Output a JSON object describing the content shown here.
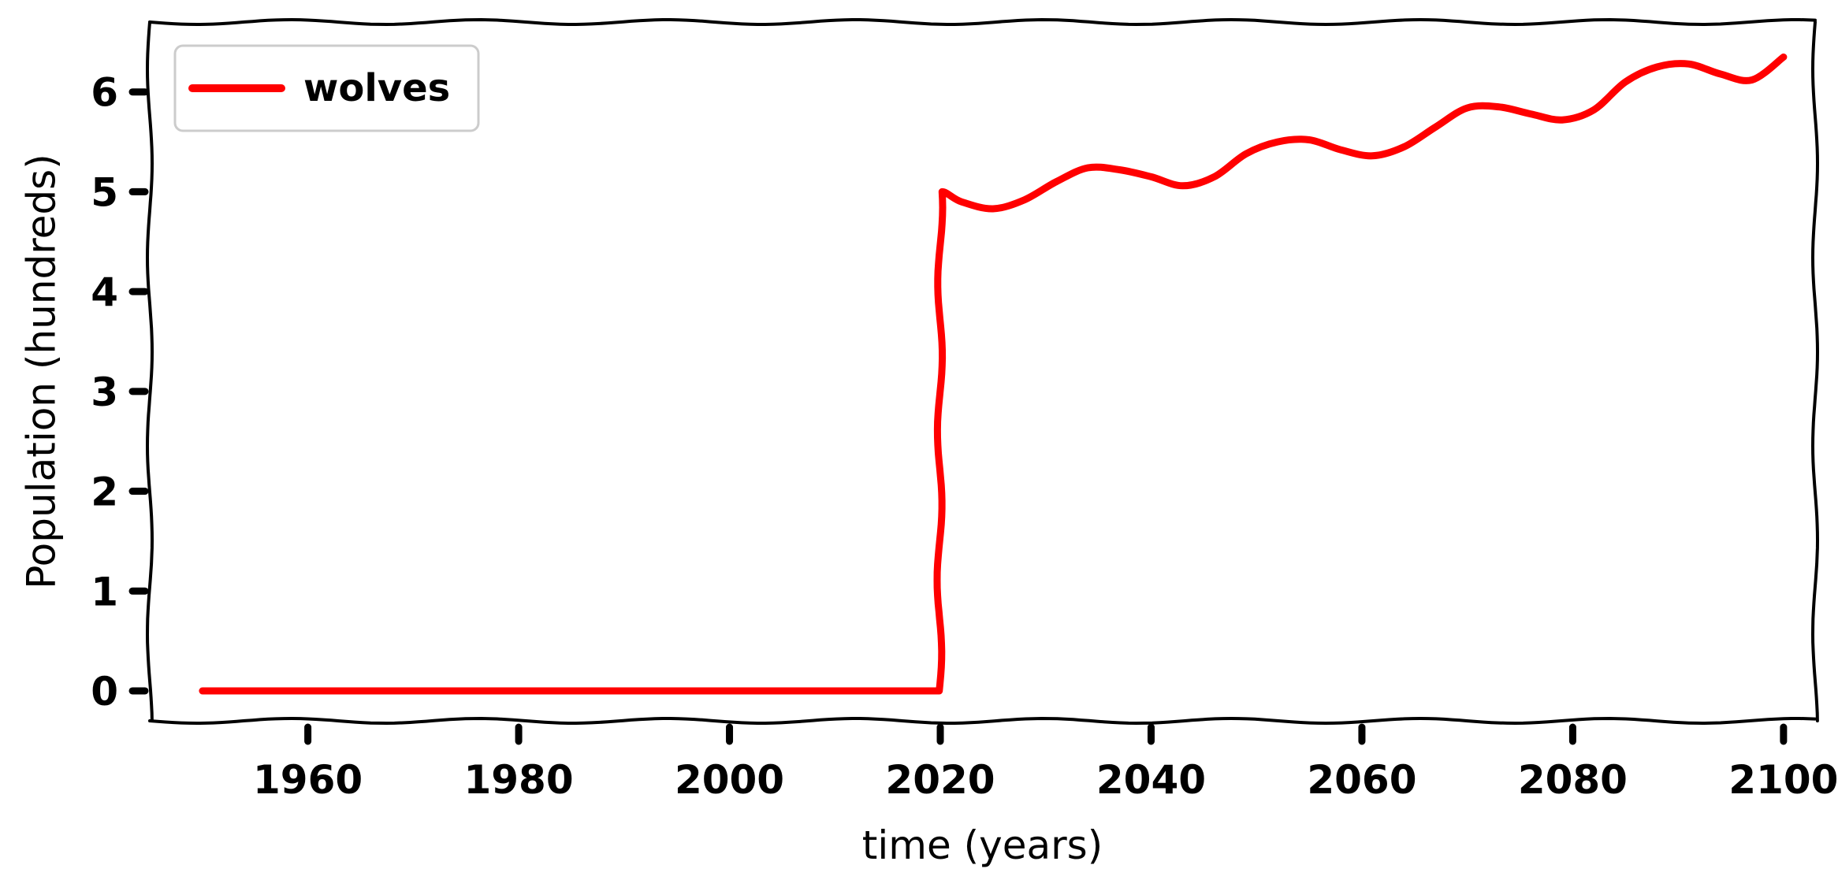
{
  "chart_data": {
    "type": "line",
    "title": "",
    "xlabel": "time (years)",
    "ylabel": "Population (hundreds)",
    "xlim": [
      1945,
      2103
    ],
    "ylim": [
      -0.3,
      6.7
    ],
    "xticks": [
      1960,
      1980,
      2000,
      2020,
      2040,
      2060,
      2080,
      2100
    ],
    "yticks": [
      0,
      1,
      2,
      3,
      4,
      5,
      6
    ],
    "grid": false,
    "legend": {
      "position": "top-left"
    },
    "series": [
      {
        "name": "wolves",
        "color": "#ff0000",
        "x": [
          1950,
          1960,
          1970,
          1980,
          1990,
          2000,
          2010,
          2019.9,
          2020,
          2022,
          2025,
          2028,
          2031,
          2034,
          2037,
          2040,
          2043,
          2046,
          2049,
          2052,
          2055,
          2058,
          2061,
          2064,
          2067,
          2070,
          2073,
          2076,
          2079,
          2082,
          2085,
          2088,
          2091,
          2094,
          2097,
          2100
        ],
        "y": [
          0,
          0,
          0,
          0,
          0,
          0,
          0,
          0,
          5.0,
          4.9,
          4.83,
          4.92,
          5.1,
          5.24,
          5.22,
          5.15,
          5.06,
          5.15,
          5.38,
          5.5,
          5.52,
          5.42,
          5.36,
          5.45,
          5.65,
          5.84,
          5.85,
          5.78,
          5.72,
          5.82,
          6.1,
          6.25,
          6.28,
          6.18,
          6.12,
          6.35
        ]
      }
    ]
  }
}
